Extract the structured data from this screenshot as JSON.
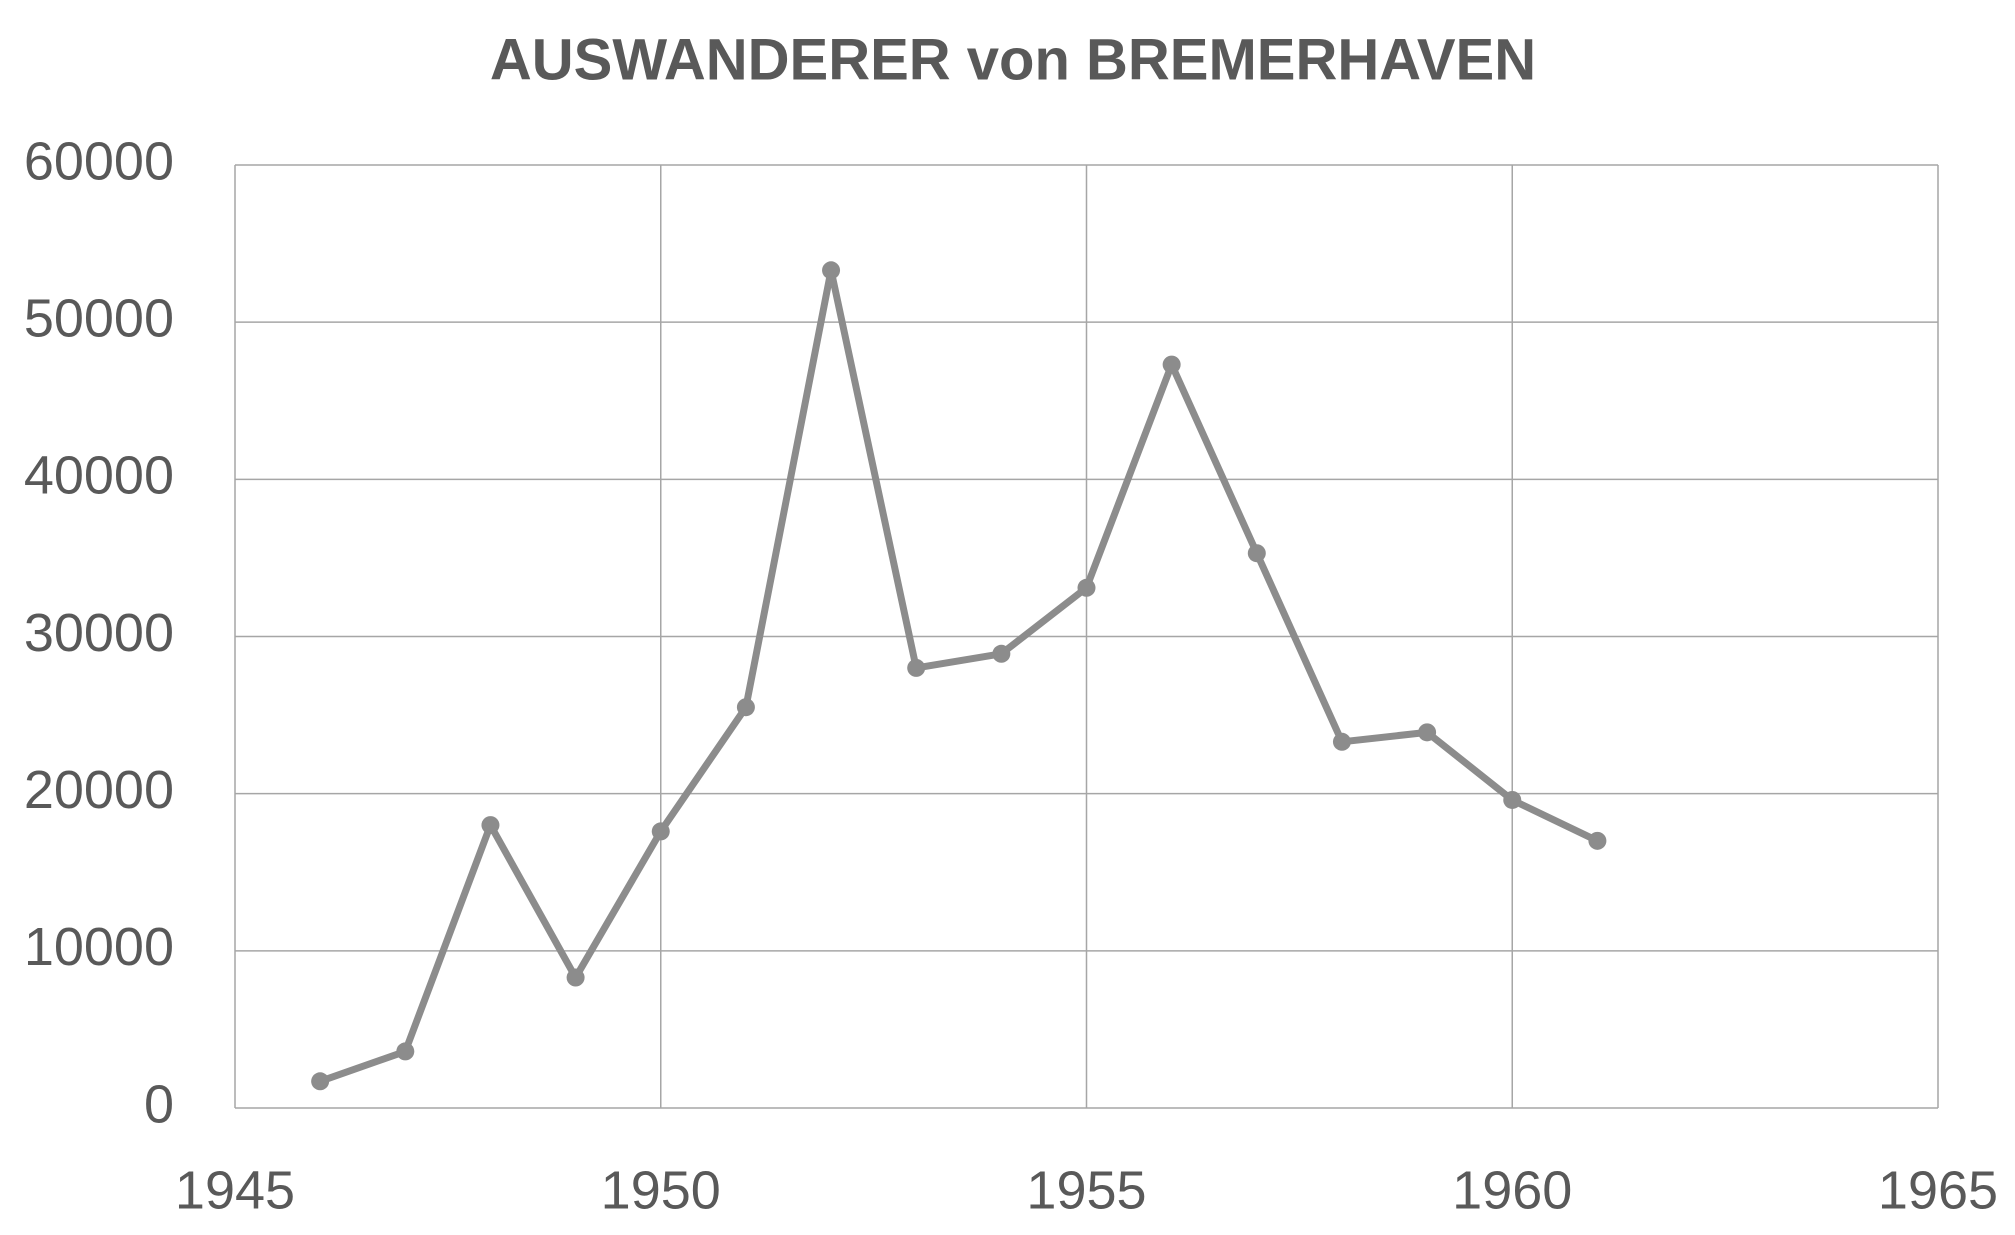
{
  "chart_data": {
    "type": "line",
    "title": "AUSWANDERER von BREMERHAVEN",
    "x": [
      1946,
      1947,
      1948,
      1949,
      1950,
      1951,
      1952,
      1953,
      1954,
      1955,
      1956,
      1957,
      1958,
      1959,
      1960,
      1961
    ],
    "series": [
      {
        "name": "Auswanderer",
        "color": "#8c8c8c",
        "values": [
          1700,
          3600,
          18000,
          8300,
          17600,
          25500,
          53300,
          28000,
          28900,
          33100,
          47300,
          35300,
          23300,
          23900,
          19600,
          17000
        ]
      }
    ],
    "xlim": [
      1945,
      1965
    ],
    "xticks": [
      1945,
      1950,
      1955,
      1960,
      1965
    ],
    "ylim": [
      0,
      60000
    ],
    "yticks": [
      0,
      10000,
      20000,
      30000,
      40000,
      50000,
      60000
    ],
    "grid": true
  }
}
